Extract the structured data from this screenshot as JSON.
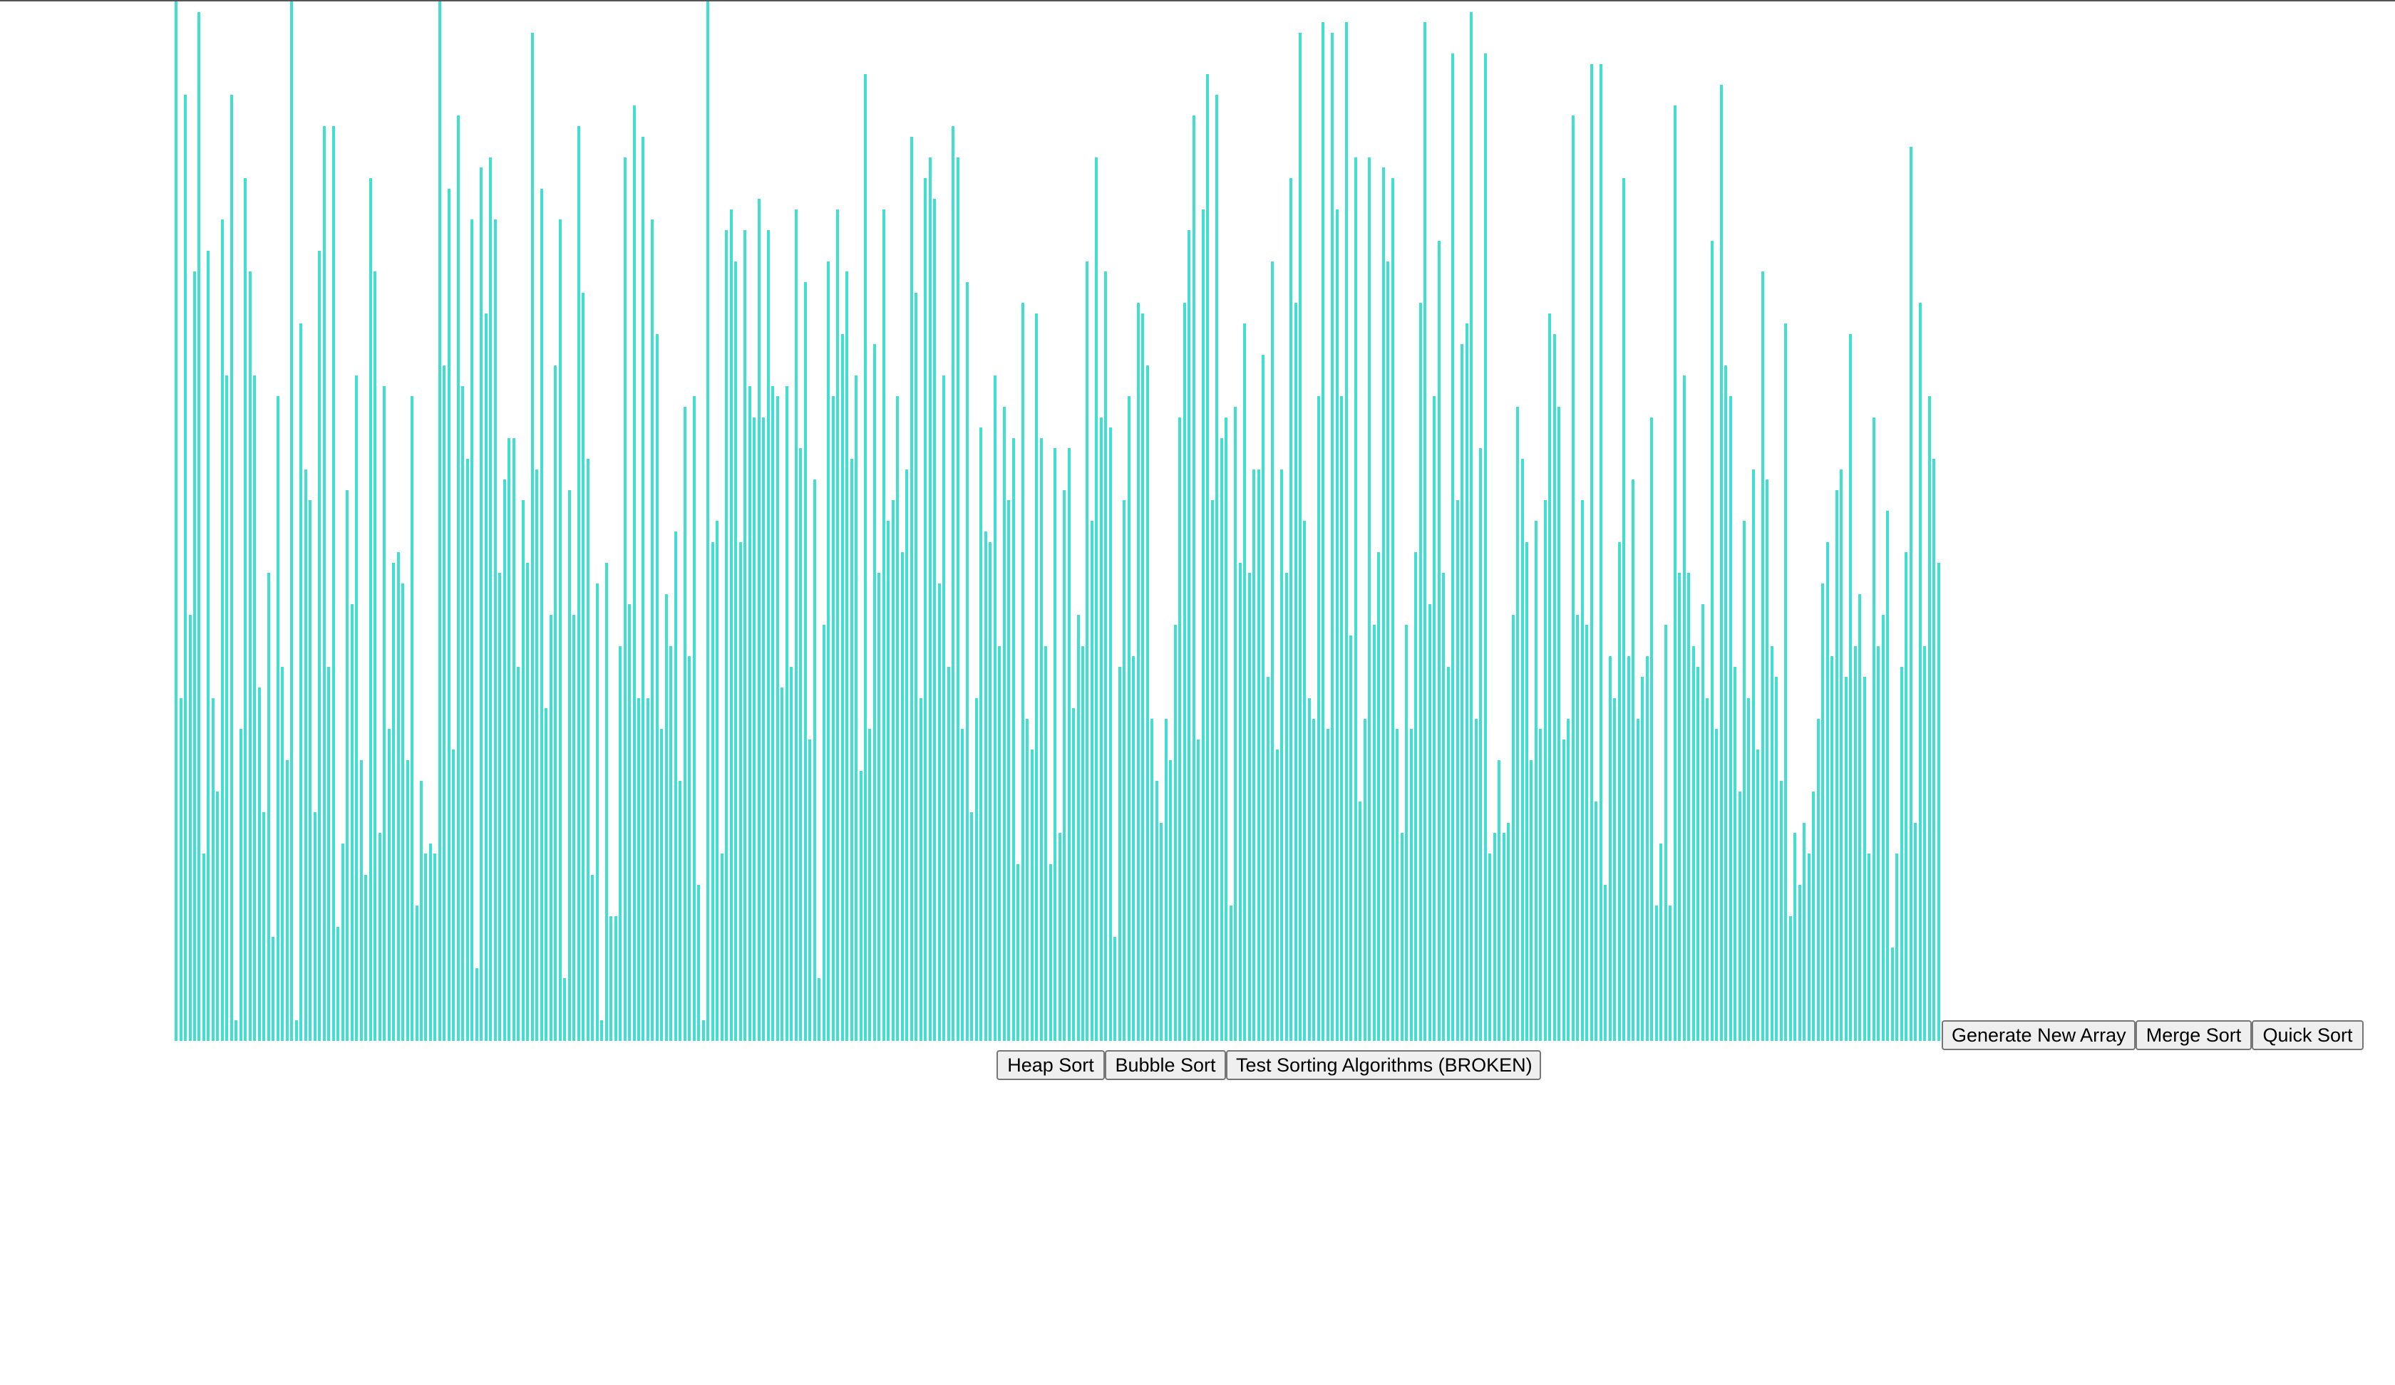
{
  "visualizer": {
    "bar_color": "#40e0d0",
    "max_value": 100,
    "array": [
      100,
      33,
      91,
      41,
      74,
      99,
      18,
      76,
      33,
      24,
      79,
      64,
      91,
      2,
      30,
      83,
      74,
      64,
      34,
      22,
      45,
      10,
      62,
      36,
      27,
      100,
      2,
      69,
      55,
      52,
      22,
      76,
      88,
      36,
      88,
      11,
      19,
      53,
      42,
      64,
      27,
      16,
      83,
      74,
      20,
      63,
      30,
      46,
      47,
      44,
      27,
      62,
      13,
      25,
      18,
      19,
      18,
      100,
      65,
      82,
      28,
      89,
      63,
      56,
      79,
      7,
      84,
      70,
      85,
      79,
      45,
      54,
      58,
      58,
      36,
      52,
      46,
      97,
      55,
      82,
      32,
      41,
      65,
      79,
      6,
      53,
      41,
      88,
      72,
      56,
      16,
      44,
      2,
      46,
      12,
      12,
      38,
      85,
      42,
      90,
      33,
      87,
      33,
      79,
      68,
      30,
      43,
      38,
      49,
      25,
      61,
      37,
      62,
      15,
      2,
      100,
      48,
      50,
      18,
      78,
      80,
      75,
      48,
      78,
      63,
      60,
      81,
      60,
      78,
      63,
      62,
      34,
      63,
      36,
      80,
      57,
      73,
      29,
      54,
      6,
      40,
      75,
      62,
      80,
      68,
      74,
      56,
      64,
      26,
      93,
      30,
      67,
      45,
      80,
      50,
      52,
      62,
      47,
      55,
      87,
      72,
      33,
      83,
      85,
      81,
      44,
      64,
      36,
      88,
      85,
      30,
      73,
      22,
      33,
      59,
      49,
      48,
      64,
      38,
      61,
      52,
      58,
      17,
      71,
      31,
      28,
      70,
      58,
      38,
      17,
      57,
      20,
      53,
      57,
      32,
      41,
      38,
      75,
      50,
      85,
      60,
      74,
      59,
      10,
      36,
      52,
      62,
      37,
      71,
      70,
      65,
      31,
      25,
      21,
      31,
      27,
      40,
      60,
      71,
      78,
      89,
      29,
      80,
      93,
      52,
      91,
      58,
      60,
      13,
      61,
      46,
      69,
      45,
      55,
      55,
      66,
      35,
      75,
      28,
      55,
      45,
      83,
      71,
      97,
      50,
      33,
      31,
      62,
      98,
      30,
      97,
      80,
      62,
      98,
      39,
      85,
      23,
      31,
      85,
      40,
      47,
      84,
      75,
      83,
      30,
      20,
      40,
      30,
      47,
      71,
      98,
      42,
      62,
      77,
      45,
      36,
      95,
      52,
      67,
      69,
      99,
      31,
      57,
      95,
      18,
      20,
      27,
      20,
      21,
      41,
      61,
      56,
      48,
      27,
      50,
      30,
      52,
      70,
      68,
      61,
      29,
      31,
      89,
      41,
      52,
      40,
      94,
      23,
      94,
      15,
      37,
      33,
      48,
      83,
      37,
      54,
      31,
      35,
      37,
      60,
      13,
      19,
      40,
      13,
      90,
      45,
      64,
      45,
      38,
      36,
      42,
      33,
      77,
      30,
      92,
      65,
      62,
      36,
      24,
      50,
      33,
      55,
      28,
      74,
      54,
      38,
      35,
      25,
      69,
      12,
      20,
      15,
      21,
      18,
      24,
      31,
      44,
      48,
      37,
      53,
      55,
      35,
      68,
      38,
      43,
      35,
      18,
      60,
      38,
      41,
      51,
      9,
      18,
      36,
      47,
      86,
      21,
      71,
      38,
      62,
      56,
      46
    ]
  },
  "controls": {
    "generate_label": "Generate New Array",
    "merge_label": "Merge Sort",
    "quick_label": "Quick Sort",
    "heap_label": "Heap Sort",
    "bubble_label": "Bubble Sort",
    "test_label": "Test Sorting Algorithms (BROKEN)"
  }
}
